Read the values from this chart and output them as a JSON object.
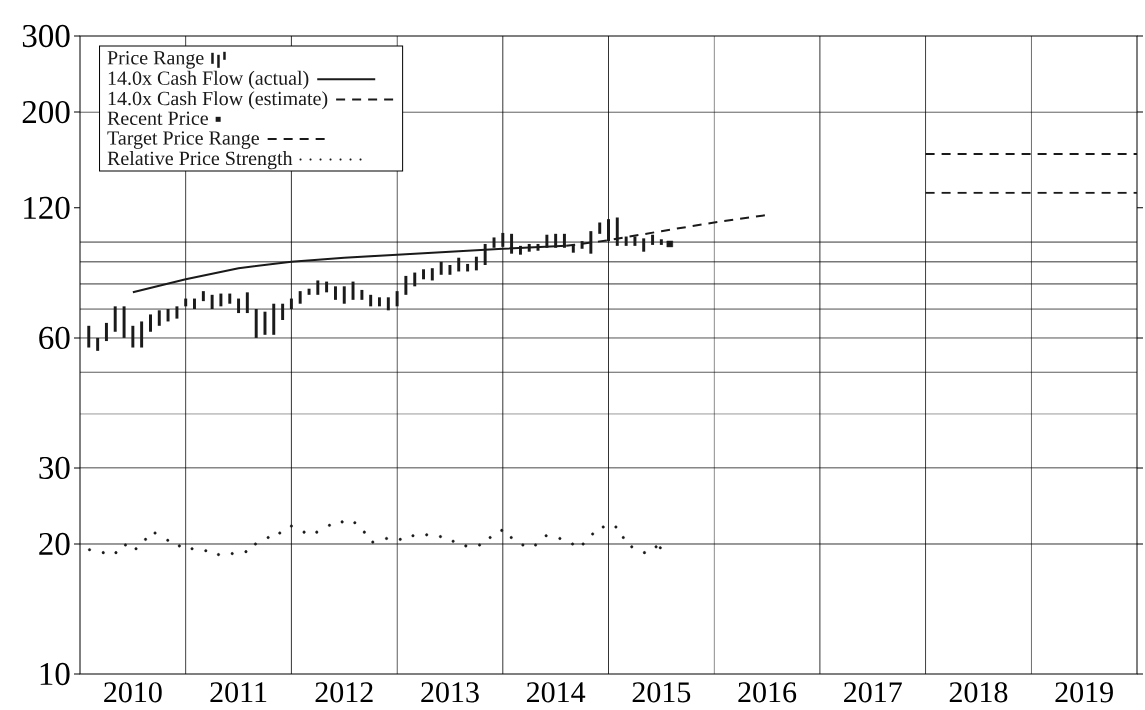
{
  "chart_data": {
    "type": "bar",
    "log": true,
    "legend": "top left",
    "xlim": [
      2010,
      2020
    ],
    "ylim": [
      10,
      300
    ],
    "xticks": [
      {
        "value": 2010.5,
        "label": "2010"
      },
      {
        "value": 2011.5,
        "label": "2011"
      },
      {
        "value": 2012.5,
        "label": "2012"
      },
      {
        "value": 2013.5,
        "label": "2013"
      },
      {
        "value": 2014.5,
        "label": "2014"
      },
      {
        "value": 2015.5,
        "label": "2015"
      },
      {
        "value": 2016.5,
        "label": "2016"
      },
      {
        "value": 2017.5,
        "label": "2017"
      },
      {
        "value": 2018.5,
        "label": "2018"
      },
      {
        "value": 2019.5,
        "label": "2019"
      }
    ],
    "yticks": [
      10,
      20,
      30,
      60,
      120,
      200,
      300
    ],
    "ref_lines": [
      {
        "axis": "y",
        "value": 20
      },
      {
        "axis": "y",
        "value": 30
      },
      {
        "axis": "y",
        "value": 40
      },
      {
        "axis": "y",
        "value": 50
      },
      {
        "axis": "y",
        "value": 60
      },
      {
        "axis": "y",
        "value": 70
      },
      {
        "axis": "y",
        "value": 80
      },
      {
        "axis": "y",
        "value": 90
      },
      {
        "axis": "y",
        "value": 100
      },
      {
        "axis": "y",
        "value": 200
      },
      {
        "axis": "x",
        "value": 2011
      },
      {
        "axis": "x",
        "value": 2012
      },
      {
        "axis": "x",
        "value": 2013
      },
      {
        "axis": "x",
        "value": 2014
      },
      {
        "axis": "x",
        "value": 2015
      },
      {
        "axis": "x",
        "value": 2016
      },
      {
        "axis": "x",
        "value": 2017
      },
      {
        "axis": "x",
        "value": 2018
      },
      {
        "axis": "x",
        "value": 2019
      }
    ],
    "series": [
      {
        "name": "Price Range",
        "color": "#1a1a1a",
        "x": [
          2010.083,
          2010.167,
          2010.25,
          2010.333,
          2010.417,
          2010.5,
          2010.583,
          2010.667,
          2010.75,
          2010.833,
          2010.917,
          2011.0,
          2011.083,
          2011.167,
          2011.25,
          2011.333,
          2011.417,
          2011.5,
          2011.583,
          2011.667,
          2011.75,
          2011.833,
          2011.917,
          2012.0,
          2012.083,
          2012.167,
          2012.25,
          2012.333,
          2012.417,
          2012.5,
          2012.583,
          2012.667,
          2012.75,
          2012.833,
          2012.917,
          2013.0,
          2013.083,
          2013.167,
          2013.25,
          2013.333,
          2013.417,
          2013.5,
          2013.583,
          2013.667,
          2013.75,
          2013.833,
          2013.917,
          2014.0,
          2014.083,
          2014.167,
          2014.25,
          2014.333,
          2014.417,
          2014.5,
          2014.583,
          2014.667,
          2014.75,
          2014.833,
          2014.917,
          2015.0,
          2015.083,
          2015.167,
          2015.25,
          2015.333,
          2015.417,
          2015.5
        ],
        "base": [
          57,
          56,
          59,
          62,
          60,
          57,
          57,
          62,
          64,
          65.5,
          66.5,
          71,
          70,
          73,
          70,
          71,
          72,
          68.5,
          68.5,
          60,
          61,
          61,
          66,
          70,
          72,
          75.5,
          75.5,
          76.5,
          73.5,
          72,
          73.5,
          73.5,
          71,
          71,
          69.5,
          71,
          75.5,
          79,
          82,
          81.5,
          84,
          84,
          85.5,
          85.5,
          86,
          88.5,
          97,
          97.5,
          94,
          93.5,
          95,
          95.5,
          97,
          97,
          97,
          94.5,
          96.5,
          94,
          104.5,
          100.5,
          98,
          98,
          98,
          95,
          98.5,
          98.5
        ],
        "values": [
          7,
          4,
          6,
          9,
          11,
          7,
          8.5,
          6,
          5.5,
          4.5,
          4.5,
          3,
          4,
          4,
          5.5,
          5,
          4,
          5.5,
          8,
          10,
          8,
          11,
          6,
          4,
          5,
          2.5,
          6,
          4.5,
          5.5,
          7,
          7.5,
          4,
          4.5,
          3.5,
          5,
          6,
          8,
          6,
          4.5,
          5.5,
          6,
          4.5,
          6.5,
          3.5,
          6.5,
          10.5,
          5.5,
          7.5,
          10.5,
          4.5,
          4,
          3.5,
          7,
          7.5,
          7.5,
          4.5,
          4,
          12,
          6.5,
          12.5,
          16,
          5,
          5,
          7,
          5.5,
          3
        ]
      },
      {
        "name": "14.0x Cash Flow (actual)",
        "type": "line",
        "line_style": "solid",
        "color": "#1a1a1a",
        "x": [
          2010.5,
          2011.0,
          2011.5,
          2012.0,
          2012.5,
          2013.0,
          2013.5,
          2014.0,
          2014.6
        ],
        "values": [
          76.5,
          82,
          87,
          90,
          92,
          93.5,
          95,
          96.5,
          98
        ]
      },
      {
        "name": "14.0x Cash Flow (estimate)",
        "type": "line",
        "line_style": "dashed",
        "color": "#1a1a1a",
        "x": [
          2014.6,
          2015.0,
          2015.5,
          2016.0,
          2016.5
        ],
        "values": [
          98,
          101,
          106,
          111,
          115.5
        ]
      },
      {
        "name": "Recent Price",
        "type": "scatter",
        "marker": "square",
        "color": "#1a1a1a",
        "x": [
          2015.58
        ],
        "values": [
          99
        ]
      },
      {
        "name": "Target Price Range",
        "type": "line",
        "line_style": "dashed",
        "color": "#1a1a1a",
        "x": [
          2018,
          2020
        ],
        "values": [
          160,
          160
        ]
      },
      {
        "type": "line",
        "line_style": "dashed",
        "color": "#1a1a1a",
        "x": [
          2018,
          2020
        ],
        "values": [
          130,
          130
        ]
      },
      {
        "name": "Relative Price Strength",
        "type": "scatter",
        "marker": "circle",
        "color": "#1a1a1a",
        "x": [
          2010.09,
          2010.22,
          2010.34,
          2010.43,
          2010.53,
          2010.62,
          2010.71,
          2010.83,
          2010.94,
          2011.06,
          2011.19,
          2011.31,
          2011.44,
          2011.57,
          2011.66,
          2011.78,
          2011.89,
          2012.0,
          2012.12,
          2012.24,
          2012.36,
          2012.48,
          2012.6,
          2012.69,
          2012.77,
          2012.9,
          2013.03,
          2013.15,
          2013.28,
          2013.41,
          2013.53,
          2013.65,
          2013.78,
          2013.88,
          2013.99,
          2014.08,
          2014.19,
          2014.31,
          2014.41,
          2014.54,
          2014.66,
          2014.76,
          2014.85,
          2014.95,
          2015.07,
          2015.14,
          2015.22,
          2015.34,
          2015.45,
          2015.49
        ],
        "values": [
          19.4,
          19.1,
          19.1,
          19.9,
          19.5,
          20.5,
          21.2,
          20.4,
          19.8,
          19.5,
          19.3,
          18.9,
          19.0,
          19.2,
          20.0,
          20.7,
          21.2,
          22.0,
          21.3,
          21.3,
          22.1,
          22.5,
          22.4,
          21.3,
          20.2,
          20.6,
          20.5,
          20.9,
          21.0,
          20.8,
          20.3,
          19.8,
          19.9,
          20.7,
          21.5,
          20.7,
          19.9,
          19.9,
          20.9,
          20.6,
          20.0,
          20.0,
          21.1,
          21.9,
          21.9,
          20.7,
          19.7,
          19.1,
          19.7,
          19.6
        ]
      }
    ]
  }
}
